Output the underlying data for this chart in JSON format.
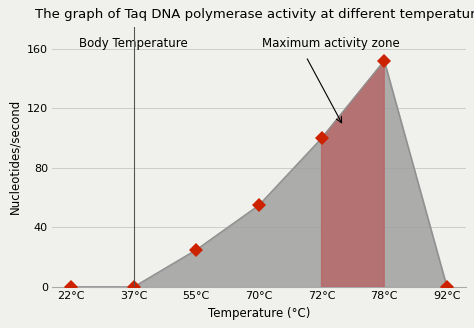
{
  "title": "The graph of Taq DNA polymerase activity at different temperature",
  "xlabel": "Temperature (°C)",
  "ylabel": "Nucleotides/second",
  "x_positions": [
    0,
    1,
    2,
    3,
    4,
    5,
    6
  ],
  "y_values": [
    0,
    0,
    25,
    55,
    100,
    152,
    0
  ],
  "x_tick_labels": [
    "22°C",
    "37°C",
    "55°C",
    "70°C",
    "72°C",
    "78°C",
    "92°C"
  ],
  "yticks": [
    0,
    40,
    80,
    120,
    160
  ],
  "ylim": [
    0,
    175
  ],
  "xlim": [
    -0.3,
    6.3
  ],
  "fill_color_main": "#a0a0a0",
  "fill_color_zone": "#b86464",
  "fill_alpha_main": 0.85,
  "fill_alpha_zone": 0.8,
  "marker_color": "#cc2200",
  "marker_size": 7,
  "line_color": "#909090",
  "zone_idx_start": 4,
  "zone_idx_end": 5,
  "body_temp_idx": 1,
  "body_temp_label": "Body Temperature",
  "max_zone_label": "Maximum activity zone",
  "bg_color": "#f0f0ec",
  "title_fontsize": 9.5,
  "label_fontsize": 8.5,
  "tick_fontsize": 8
}
